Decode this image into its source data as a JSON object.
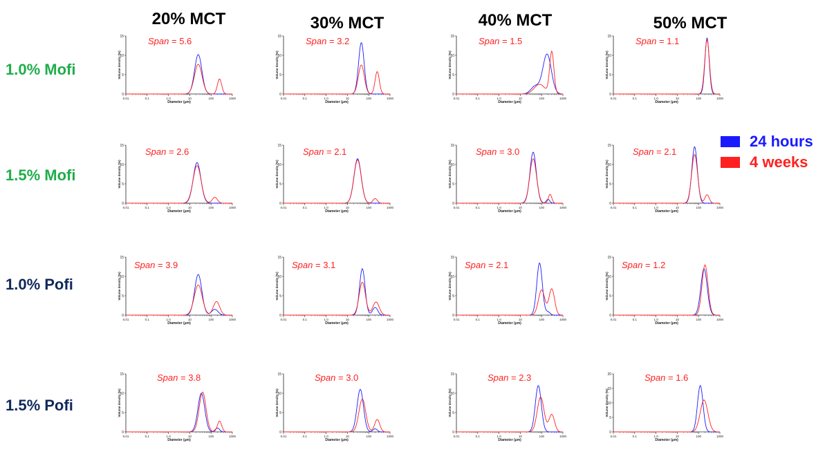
{
  "column_headers": [
    "20% MCT",
    "30% MCT",
    "40% MCT",
    "50% MCT"
  ],
  "row_headers": [
    "1.0% Mofi",
    "1.5% Mofi",
    "1.0% Pofi",
    "1.5% Pofi"
  ],
  "colors": {
    "mofi": "#1fad4b",
    "pofi": "#10285a",
    "series_24h": "#1a1aff",
    "series_4w": "#ff2020"
  },
  "legend": [
    {
      "label": "24 hours",
      "color": "#1a1aff"
    },
    {
      "label": "4 weeks",
      "color": "#ff2020"
    }
  ],
  "span_prefix": "Span",
  "span_eq": " = ",
  "chart_data": [
    {
      "type": "line",
      "row": "1.0% Mofi",
      "column": "20% MCT",
      "span_label": "5.6",
      "xlabel": "Diameter (μm)",
      "ylabel": "Volume density (%)",
      "xscale": "log",
      "xlim": [
        0.01,
        1000
      ],
      "ylim": [
        0,
        15
      ],
      "yticks": [
        "0",
        "5",
        "10",
        "15"
      ],
      "xticks": [
        "0.01",
        "0.1",
        "1.0",
        "10",
        "100",
        "1000"
      ],
      "series": [
        {
          "name": "24 hours",
          "peaks": [
            [
              25,
              10.2,
              0.17
            ]
          ]
        },
        {
          "name": "4 weeks",
          "peaks": [
            [
              25,
              7.7,
              0.18
            ],
            [
              250,
              3.9,
              0.1
            ]
          ]
        }
      ]
    },
    {
      "type": "line",
      "row": "1.0% Mofi",
      "column": "30% MCT",
      "span_label": "3.2",
      "xlabel": "Diameter (μm)",
      "ylabel": "Volume density (%)",
      "xscale": "log",
      "xlim": [
        0.01,
        1000
      ],
      "ylim": [
        0,
        15
      ],
      "yticks": [
        "0",
        "5",
        "10",
        "15"
      ],
      "xticks": [
        "0.01",
        "0.1",
        "1.0",
        "10",
        "100",
        "1000"
      ],
      "series": [
        {
          "name": "24 hours",
          "peaks": [
            [
              45,
              13.3,
              0.13
            ]
          ]
        },
        {
          "name": "4 weeks",
          "peaks": [
            [
              45,
              7.5,
              0.14
            ],
            [
              250,
              5.8,
              0.1
            ]
          ]
        }
      ]
    },
    {
      "type": "line",
      "row": "1.0% Mofi",
      "column": "40% MCT",
      "span_label": "1.5",
      "xlabel": "Diameter (μm)",
      "ylabel": "Volume density (%)",
      "xscale": "log",
      "xlim": [
        0.01,
        1000
      ],
      "ylim": [
        0,
        15
      ],
      "yticks": [
        "0",
        "5",
        "10",
        "15"
      ],
      "xticks": [
        "0.01",
        "0.1",
        "1.0",
        "10",
        "100",
        "1000"
      ],
      "series": [
        {
          "name": "24 hours",
          "peaks": [
            [
              180,
              10.3,
              0.2
            ],
            [
              50,
              2.0,
              0.2
            ]
          ]
        },
        {
          "name": "4 weeks",
          "peaks": [
            [
              300,
              10.9,
              0.1
            ],
            [
              80,
              2.5,
              0.25
            ]
          ]
        }
      ]
    },
    {
      "type": "line",
      "row": "1.0% Mofi",
      "column": "50% MCT",
      "span_label": "1.1",
      "xlabel": "Diameter (μm)",
      "ylabel": "Volume density (%)",
      "xscale": "log",
      "xlim": [
        0.01,
        1000
      ],
      "ylim": [
        0,
        15
      ],
      "yticks": [
        "0",
        "5",
        "10",
        "15"
      ],
      "xticks": [
        "0.01",
        "0.1",
        "1.0",
        "10",
        "100",
        "1000"
      ],
      "series": [
        {
          "name": "24 hours",
          "peaks": [
            [
              250,
              14.5,
              0.1
            ]
          ]
        },
        {
          "name": "4 weeks",
          "peaks": [
            [
              250,
              14.0,
              0.11
            ]
          ]
        }
      ]
    },
    {
      "type": "line",
      "row": "1.5% Mofi",
      "column": "20% MCT",
      "span_label": "2.6",
      "xlabel": "Diameter (μm)",
      "ylabel": "Volume density (%)",
      "xscale": "log",
      "xlim": [
        0.01,
        1000
      ],
      "ylim": [
        0,
        15
      ],
      "yticks": [
        "0",
        "5",
        "10",
        "15"
      ],
      "xticks": [
        "0.01",
        "0.1",
        "1.0",
        "10",
        "100",
        "1000"
      ],
      "series": [
        {
          "name": "24 hours",
          "peaks": [
            [
              22,
              10.5,
              0.18
            ]
          ]
        },
        {
          "name": "4 weeks",
          "peaks": [
            [
              22,
              9.7,
              0.19
            ],
            [
              150,
              1.5,
              0.12
            ]
          ]
        }
      ]
    },
    {
      "type": "line",
      "row": "1.5% Mofi",
      "column": "30% MCT",
      "span_label": "2.1",
      "xlabel": "Diameter (μm)",
      "ylabel": "Volume density (%)",
      "xscale": "log",
      "xlim": [
        0.01,
        1000
      ],
      "ylim": [
        0,
        15
      ],
      "yticks": [
        "0",
        "5",
        "10",
        "15"
      ],
      "xticks": [
        "0.01",
        "0.1",
        "1.0",
        "10",
        "100",
        "1000"
      ],
      "series": [
        {
          "name": "24 hours",
          "peaks": [
            [
              30,
              11.5,
              0.17
            ]
          ]
        },
        {
          "name": "4 weeks",
          "peaks": [
            [
              30,
              11.2,
              0.17
            ],
            [
              200,
              1.2,
              0.1
            ]
          ]
        }
      ]
    },
    {
      "type": "line",
      "row": "1.5% Mofi",
      "column": "40% MCT",
      "span_label": "3.0",
      "xlabel": "Diameter (μm)",
      "ylabel": "Volume density (%)",
      "xscale": "log",
      "xlim": [
        0.01,
        1000
      ],
      "ylim": [
        0,
        15
      ],
      "yticks": [
        "0",
        "5",
        "10",
        "15"
      ],
      "xticks": [
        "0.01",
        "0.1",
        "1.0",
        "10",
        "100",
        "1000"
      ],
      "series": [
        {
          "name": "24 hours",
          "peaks": [
            [
              40,
              13.2,
              0.15
            ],
            [
              200,
              1.0,
              0.08
            ]
          ]
        },
        {
          "name": "4 weeks",
          "peaks": [
            [
              40,
              11.5,
              0.16
            ],
            [
              250,
              2.3,
              0.08
            ]
          ]
        }
      ]
    },
    {
      "type": "line",
      "row": "1.5% Mofi",
      "column": "50% MCT",
      "span_label": "2.1",
      "xlabel": "Diameter (μm)",
      "ylabel": "Volume density (%)",
      "xscale": "log",
      "xlim": [
        0.01,
        1000
      ],
      "ylim": [
        0,
        15
      ],
      "yticks": [
        "0",
        "5",
        "10",
        "15"
      ],
      "xticks": [
        "0.01",
        "0.1",
        "1.0",
        "10",
        "100",
        "1000"
      ],
      "series": [
        {
          "name": "24 hours",
          "peaks": [
            [
              65,
              14.6,
              0.13
            ]
          ]
        },
        {
          "name": "4 weeks",
          "peaks": [
            [
              65,
              12.6,
              0.14
            ],
            [
              250,
              2.2,
              0.1
            ]
          ]
        }
      ]
    },
    {
      "type": "line",
      "row": "1.0% Pofi",
      "column": "20% MCT",
      "span_label": "3.9",
      "xlabel": "Diameter (μm)",
      "ylabel": "Volume density (%)",
      "xscale": "log",
      "xlim": [
        0.01,
        1000
      ],
      "ylim": [
        0,
        15
      ],
      "yticks": [
        "0",
        "5",
        "10",
        "15"
      ],
      "xticks": [
        "0.01",
        "0.1",
        "1.0",
        "10",
        "100",
        "1000"
      ],
      "series": [
        {
          "name": "24 hours",
          "peaks": [
            [
              25,
              10.5,
              0.17
            ],
            [
              150,
              1.5,
              0.15
            ]
          ]
        },
        {
          "name": "4 weeks",
          "peaks": [
            [
              25,
              7.8,
              0.19
            ],
            [
              180,
              3.5,
              0.15
            ]
          ]
        }
      ]
    },
    {
      "type": "line",
      "row": "1.0% Pofi",
      "column": "30% MCT",
      "span_label": "3.1",
      "xlabel": "Diameter (μm)",
      "ylabel": "Volume density (%)",
      "xscale": "log",
      "xlim": [
        0.01,
        1000
      ],
      "ylim": [
        0,
        15
      ],
      "yticks": [
        "0",
        "5",
        "10",
        "15"
      ],
      "xticks": [
        "0.01",
        "0.1",
        "1.0",
        "10",
        "100",
        "1000"
      ],
      "series": [
        {
          "name": "24 hours",
          "peaks": [
            [
              50,
              12.0,
              0.13
            ],
            [
              200,
              2.0,
              0.12
            ]
          ]
        },
        {
          "name": "4 weeks",
          "peaks": [
            [
              50,
              8.5,
              0.15
            ],
            [
              220,
              3.4,
              0.15
            ]
          ]
        }
      ]
    },
    {
      "type": "line",
      "row": "1.0% Pofi",
      "column": "40% MCT",
      "span_label": "2.1",
      "xlabel": "Diameter (μm)",
      "ylabel": "Volume density (%)",
      "xscale": "log",
      "xlim": [
        0.01,
        1000
      ],
      "ylim": [
        0,
        15
      ],
      "yticks": [
        "0",
        "5",
        "10",
        "15"
      ],
      "xticks": [
        "0.01",
        "0.1",
        "1.0",
        "10",
        "100",
        "1000"
      ],
      "series": [
        {
          "name": "24 hours",
          "peaks": [
            [
              80,
              13.5,
              0.13
            ],
            [
              200,
              0.8,
              0.1
            ]
          ]
        },
        {
          "name": "4 weeks",
          "peaks": [
            [
              100,
              6.5,
              0.15
            ],
            [
              300,
              6.8,
              0.13
            ]
          ]
        }
      ]
    },
    {
      "type": "line",
      "row": "1.0% Pofi",
      "column": "50% MCT",
      "span_label": "1.2",
      "xlabel": "Diameter (μm)",
      "ylabel": "Volume density (%)",
      "xscale": "log",
      "xlim": [
        0.01,
        1000
      ],
      "ylim": [
        0,
        15
      ],
      "yticks": [
        "0",
        "5",
        "10",
        "15"
      ],
      "xticks": [
        "0.01",
        "0.1",
        "1.0",
        "10",
        "100",
        "1000"
      ],
      "series": [
        {
          "name": "24 hours",
          "peaks": [
            [
              180,
              12.0,
              0.15
            ]
          ]
        },
        {
          "name": "4 weeks",
          "peaks": [
            [
              200,
              13.0,
              0.14
            ]
          ]
        }
      ]
    },
    {
      "type": "line",
      "row": "1.5% Pofi",
      "column": "20% MCT",
      "span_label": "3.8",
      "xlabel": "Diameter (μm)",
      "ylabel": "Volume density (%)",
      "xscale": "log",
      "xlim": [
        0.01,
        1000
      ],
      "ylim": [
        0,
        15
      ],
      "yticks": [
        "0",
        "5",
        "10",
        "15"
      ],
      "xticks": [
        "0.01",
        "0.1",
        "1.0",
        "10",
        "100",
        "1000"
      ],
      "series": [
        {
          "name": "24 hours",
          "peaks": [
            [
              35,
              10.0,
              0.16
            ],
            [
              200,
              1.0,
              0.1
            ]
          ]
        },
        {
          "name": "4 weeks",
          "peaks": [
            [
              40,
              10.3,
              0.16
            ],
            [
              250,
              2.8,
              0.1
            ]
          ]
        }
      ]
    },
    {
      "type": "line",
      "row": "1.5% Pofi",
      "column": "30% MCT",
      "span_label": "3.0",
      "xlabel": "Diameter (μm)",
      "ylabel": "Volume density (%)",
      "xscale": "log",
      "xlim": [
        0.01,
        1000
      ],
      "ylim": [
        0,
        15
      ],
      "yticks": [
        "0",
        "5",
        "10",
        "15"
      ],
      "xticks": [
        "0.01",
        "0.1",
        "1.0",
        "10",
        "100",
        "1000"
      ],
      "series": [
        {
          "name": "24 hours",
          "peaks": [
            [
              40,
              11.0,
              0.15
            ],
            [
              200,
              0.8,
              0.1
            ]
          ]
        },
        {
          "name": "4 weeks",
          "peaks": [
            [
              50,
              8.5,
              0.16
            ],
            [
              250,
              3.2,
              0.12
            ]
          ]
        }
      ]
    },
    {
      "type": "line",
      "row": "1.5% Pofi",
      "column": "40% MCT",
      "span_label": "2.3",
      "xlabel": "Diameter (μm)",
      "ylabel": "Volume density (%)",
      "xscale": "log",
      "xlim": [
        0.01,
        1000
      ],
      "ylim": [
        0,
        15
      ],
      "yticks": [
        "0",
        "5",
        "10",
        "15"
      ],
      "xticks": [
        "0.01",
        "0.1",
        "1.0",
        "10",
        "100",
        "1000"
      ],
      "series": [
        {
          "name": "24 hours",
          "peaks": [
            [
              70,
              12.0,
              0.14
            ]
          ]
        },
        {
          "name": "4 weeks",
          "peaks": [
            [
              90,
              9.0,
              0.16
            ],
            [
              300,
              4.5,
              0.13
            ]
          ]
        }
      ]
    },
    {
      "type": "line",
      "row": "1.5% Pofi",
      "column": "50% MCT",
      "span_label": "1.6",
      "xlabel": "Diameter (μm)",
      "ylabel": "Volume density (%)",
      "xscale": "log",
      "xlim": [
        0.01,
        1000
      ],
      "ylim": [
        0,
        20
      ],
      "yticks": [
        "0",
        "5",
        "10",
        "15",
        "20"
      ],
      "xticks": [
        "0.01",
        "0.1",
        "1.0",
        "10",
        "100",
        "1000"
      ],
      "series": [
        {
          "name": "24 hours",
          "peaks": [
            [
              120,
              16.0,
              0.13
            ]
          ]
        },
        {
          "name": "4 weeks",
          "peaks": [
            [
              180,
              11.0,
              0.18
            ]
          ]
        }
      ]
    }
  ]
}
